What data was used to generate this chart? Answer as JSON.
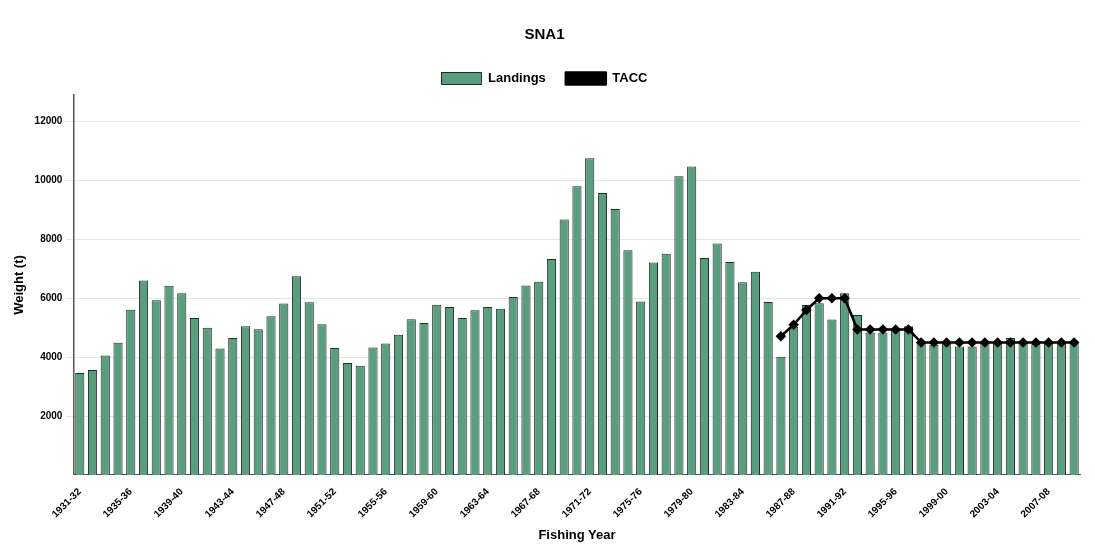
{
  "chart_data": {
    "type": "bar",
    "title": "SNA1",
    "xlabel": "Fishing Year",
    "ylabel": "Weight (t)",
    "categories": [
      "1931-32",
      null,
      null,
      null,
      "1935-36",
      null,
      null,
      null,
      "1939-40",
      null,
      null,
      null,
      "1943-44",
      null,
      null,
      null,
      "1947-48",
      null,
      null,
      null,
      "1951-52",
      null,
      null,
      null,
      "1955-56",
      null,
      null,
      null,
      "1959-60",
      null,
      null,
      null,
      "1963-64",
      null,
      null,
      null,
      "1967-68",
      null,
      null,
      null,
      "1971-72",
      null,
      null,
      null,
      "1975-76",
      null,
      null,
      null,
      "1979-80",
      null,
      null,
      null,
      "1983-84",
      null,
      null,
      null,
      "1987-88",
      null,
      null,
      null,
      "1991-92",
      null,
      null,
      null,
      "1995-96",
      null,
      null,
      null,
      "1999-00",
      null,
      null,
      null,
      "2003-04",
      null,
      null,
      null,
      "2007-08",
      null,
      null
    ],
    "series": [
      {
        "name": "Landings",
        "color": "#5b9e7e",
        "values": [
          3460,
          3560,
          4060,
          4490,
          5610,
          6600,
          5930,
          6420,
          6170,
          5330,
          5000,
          4290,
          4650,
          5050,
          4950,
          5390,
          5820,
          6750,
          5860,
          5120,
          4310,
          3800,
          3710,
          4330,
          4460,
          4760,
          5290,
          5160,
          5780,
          5700,
          5330,
          5590,
          5700,
          5640,
          6040,
          6430,
          6560,
          7330,
          8670,
          9800,
          10750,
          9570,
          9030,
          7630,
          5890,
          7210,
          7510,
          10140,
          10470,
          7370,
          7860,
          7230,
          6540,
          6900,
          5870,
          4010,
          5030,
          5770,
          5830,
          5280,
          6170,
          5430,
          4840,
          4840,
          4950,
          5050,
          4520,
          4420,
          4470,
          4360,
          4360,
          4520,
          4520,
          4650,
          4520,
          4450,
          4490,
          4490,
          4490
        ]
      },
      {
        "name": "TACC",
        "type": "line",
        "color": "#000000",
        "marker": "diamond",
        "values": [
          null,
          null,
          null,
          null,
          null,
          null,
          null,
          null,
          null,
          null,
          null,
          null,
          null,
          null,
          null,
          null,
          null,
          null,
          null,
          null,
          null,
          null,
          null,
          null,
          null,
          null,
          null,
          null,
          null,
          null,
          null,
          null,
          null,
          null,
          null,
          null,
          null,
          null,
          null,
          null,
          null,
          null,
          null,
          null,
          null,
          null,
          null,
          null,
          null,
          null,
          null,
          null,
          null,
          null,
          null,
          4710,
          5100,
          5600,
          6000,
          6000,
          6000,
          4940,
          4940,
          4940,
          4940,
          4940,
          4500,
          4500,
          4500,
          4500,
          4500,
          4500,
          4500,
          4500,
          4500,
          4500,
          4500,
          4500,
          4500
        ]
      }
    ],
    "ylim": [
      0,
      12900
    ],
    "yticks": [
      2000,
      4000,
      6000,
      8000,
      10000,
      12000
    ],
    "grid": "y",
    "legend": "top"
  }
}
